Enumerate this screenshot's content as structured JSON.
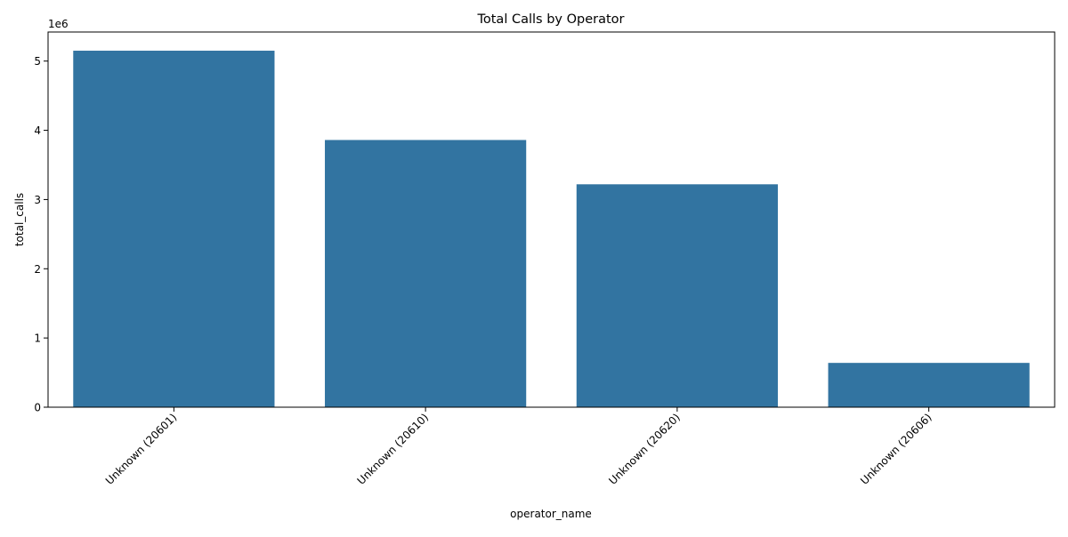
{
  "chart_data": {
    "type": "bar",
    "title": "Total Calls by Operator",
    "xlabel": "operator_name",
    "ylabel": "total_calls",
    "y_offset_label": "1e6",
    "categories": [
      "Unknown (20601)",
      "Unknown (20610)",
      "Unknown (20620)",
      "Unknown (20606)"
    ],
    "values": [
      5150000,
      3860000,
      3220000,
      640000
    ],
    "ylim": [
      0,
      5420000
    ],
    "yticks": [
      0,
      1000000,
      2000000,
      3000000,
      4000000,
      5000000
    ],
    "ytick_labels": [
      "0",
      "1",
      "2",
      "3",
      "4",
      "5"
    ],
    "xtick_rotation": 45,
    "grid": false,
    "legend": false,
    "bar_color": "#3274a1"
  }
}
